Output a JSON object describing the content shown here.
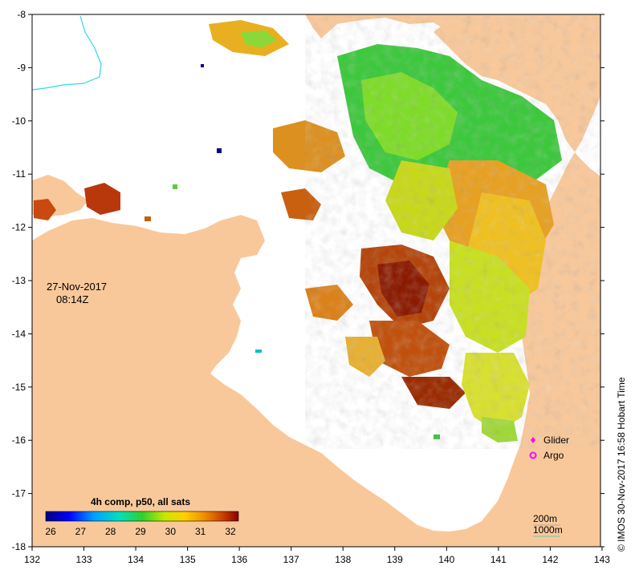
{
  "map": {
    "date": "27-Nov-2017",
    "time": "08:14Z",
    "credit": "© IMOS 30-Nov-2017 16:58 Hobart Time",
    "colorbar": {
      "title": "4h comp, p50, all sats",
      "ticks": [
        "26",
        "27",
        "28",
        "29",
        "30",
        "31",
        "32"
      ],
      "min": 26,
      "max": 32
    },
    "legend": [
      {
        "label": "Glider",
        "color": "#ff00ff",
        "symbol": "diamond"
      },
      {
        "label": "Argo",
        "color": "#ff00ff",
        "symbol": "ring"
      }
    ],
    "contours": [
      {
        "label": "200m",
        "color": "#aaaaaa"
      },
      {
        "label": "1000m",
        "color": "#66ccaa"
      }
    ],
    "lon_ticks": [
      "132",
      "133",
      "134",
      "135",
      "136",
      "137",
      "138",
      "139",
      "140",
      "141",
      "142",
      "143"
    ],
    "lat_ticks": [
      "-8",
      "-9",
      "-10",
      "-11",
      "-12",
      "-13",
      "-14",
      "-15",
      "-16",
      "-17",
      "-18"
    ],
    "colors": {
      "land": "#f9c89a",
      "river": "#33d6e6"
    }
  }
}
